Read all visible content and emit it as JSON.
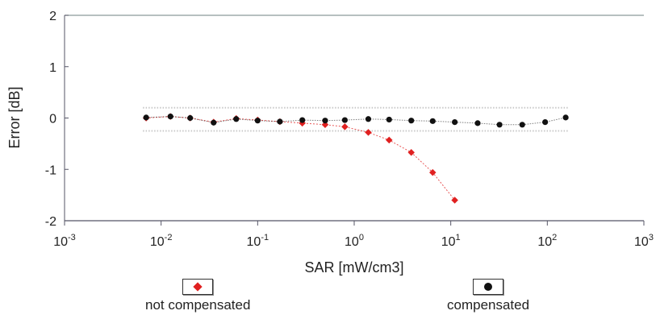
{
  "chart_data": {
    "type": "scatter",
    "xscale": "log",
    "xlim": [
      0.001,
      1000
    ],
    "ylim": [
      -2,
      2
    ],
    "xlabel": "SAR [mW/cm3]",
    "ylabel": "Error [dB]",
    "x_ticks": [
      {
        "base": "10",
        "exp": "-3",
        "value": 0.001
      },
      {
        "base": "10",
        "exp": "-2",
        "value": 0.01
      },
      {
        "base": "10",
        "exp": "-1",
        "value": 0.1
      },
      {
        "base": "10",
        "exp": "0",
        "value": 1
      },
      {
        "base": "10",
        "exp": "1",
        "value": 10
      },
      {
        "base": "10",
        "exp": "2",
        "value": 100
      },
      {
        "base": "10",
        "exp": "3",
        "value": 1000
      }
    ],
    "y_ticks": [
      "2",
      "1",
      "0",
      "-1",
      "-2"
    ],
    "y_tick_values": [
      2,
      1,
      0,
      -1,
      -2
    ],
    "band": {
      "upper": 0.2,
      "lower": -0.25
    },
    "grid": false,
    "legend_position": "bottom",
    "series": [
      {
        "name": "not compensated",
        "color": "#e02020",
        "marker": "diamond",
        "x": [
          0.007,
          0.0125,
          0.02,
          0.035,
          0.06,
          0.1,
          0.17,
          0.29,
          0.5,
          0.8,
          1.4,
          2.3,
          3.9,
          6.5,
          11
        ],
        "y": [
          0.0,
          0.03,
          0.0,
          -0.08,
          -0.01,
          -0.04,
          -0.07,
          -0.1,
          -0.13,
          -0.17,
          -0.28,
          -0.43,
          -0.67,
          -1.06,
          -1.6
        ]
      },
      {
        "name": "compensated",
        "color": "#111111",
        "marker": "circle",
        "x": [
          0.007,
          0.0125,
          0.02,
          0.035,
          0.06,
          0.1,
          0.17,
          0.29,
          0.5,
          0.8,
          1.4,
          2.3,
          3.9,
          6.5,
          11,
          19,
          32,
          55,
          95,
          155
        ],
        "y": [
          0.01,
          0.03,
          0.0,
          -0.09,
          -0.02,
          -0.05,
          -0.07,
          -0.04,
          -0.05,
          -0.04,
          -0.02,
          -0.03,
          -0.05,
          -0.06,
          -0.08,
          -0.1,
          -0.13,
          -0.13,
          -0.08,
          0.01
        ]
      }
    ]
  },
  "legend": {
    "not_compensated": "not compensated",
    "compensated": "compensated"
  }
}
